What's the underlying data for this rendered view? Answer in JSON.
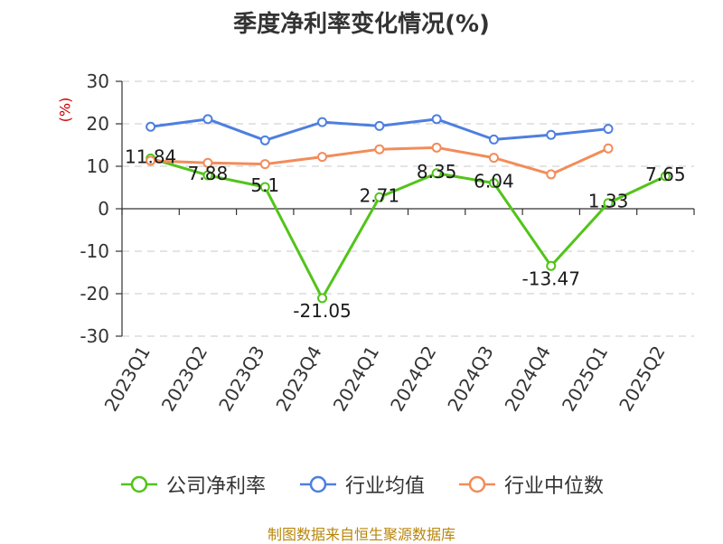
{
  "chart_data": {
    "type": "line",
    "title": "季度净利率变化情况(%)",
    "unit_label": "(%)",
    "categories": [
      "2023Q1",
      "2023Q2",
      "2023Q3",
      "2023Q4",
      "2024Q1",
      "2024Q2",
      "2024Q3",
      "2024Q4",
      "2025Q1",
      "2025Q2"
    ],
    "ylim": [
      -30,
      30
    ],
    "yticks": [
      30,
      20,
      10,
      0,
      -10,
      -20,
      -30
    ],
    "ytick_labels": [
      "30",
      "20",
      "10",
      "0",
      "-10",
      "-20",
      "-30"
    ],
    "grid": true,
    "legend_position": "bottom",
    "series": [
      {
        "name": "公司净利率",
        "color": "#52c41a",
        "values": [
          11.84,
          7.88,
          5.1,
          -21.05,
          2.71,
          8.35,
          6.04,
          -13.47,
          1.33,
          7.65
        ],
        "labels": [
          "11.84",
          "7.88",
          "5.1",
          "-21.05",
          "2.71",
          "8.35",
          "6.04",
          "-13.47",
          "1.33",
          "7.65"
        ]
      },
      {
        "name": "行业均值",
        "color": "#4e7fdf",
        "values": [
          19.3,
          21.1,
          16.1,
          20.4,
          19.5,
          21.1,
          16.3,
          17.4,
          18.8,
          null
        ]
      },
      {
        "name": "行业中位数",
        "color": "#f28c5a",
        "values": [
          11.3,
          10.8,
          10.5,
          12.2,
          14.0,
          14.4,
          12.0,
          8.1,
          14.2,
          null
        ]
      }
    ]
  },
  "source_text": "制图数据来自恒生聚源数据库"
}
